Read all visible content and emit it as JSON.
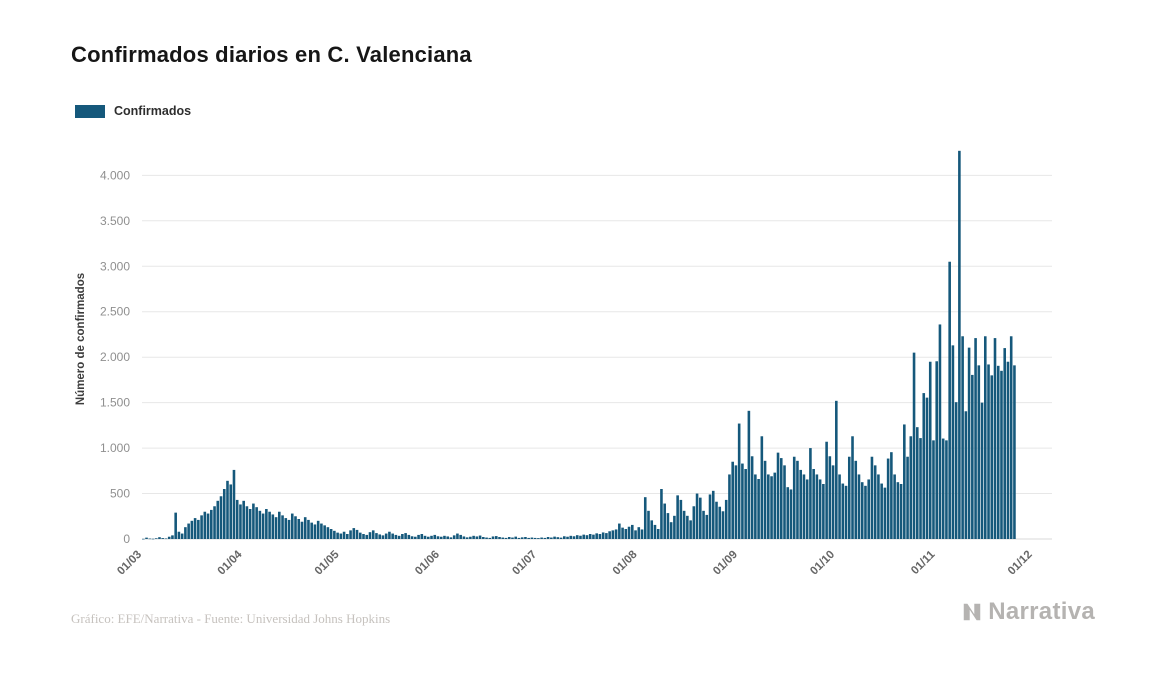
{
  "header": {
    "title": "Confirmados diarios en C. Valenciana"
  },
  "legend": {
    "items": [
      {
        "label": "Confirmados",
        "color": "#15587B"
      }
    ]
  },
  "footer": {
    "credit": "Gráfico: EFE/Narrativa - Fuente: Universidad Johns Hopkins",
    "brand": "Narrativa"
  },
  "chart_data": {
    "type": "bar",
    "title": "Confirmados diarios en C. Valenciana",
    "xlabel": "",
    "ylabel": "Número de confirmados",
    "legend_entries": [
      "Confirmados"
    ],
    "legend_position": "top-left",
    "grid": true,
    "ylim": [
      0,
      4400
    ],
    "yticks": [
      0,
      500,
      1000,
      1500,
      2000,
      2500,
      3000,
      3500,
      4000
    ],
    "ytick_labels": [
      "0",
      "500",
      "1.000",
      "1.500",
      "2.000",
      "2.500",
      "3.000",
      "3.500",
      "4.000"
    ],
    "xtick_labels": [
      "01/03",
      "01/04",
      "01/05",
      "01/06",
      "01/07",
      "01/08",
      "01/09",
      "01/10",
      "01/11",
      "01/12"
    ],
    "xtick_positions": [
      0,
      31,
      61,
      92,
      122,
      153,
      184,
      214,
      245,
      275
    ],
    "x_domain": 281,
    "start_date": "01/03",
    "cadence": "daily",
    "colors": {
      "bar": "#15587B",
      "grid": "#e7e7e7",
      "baseline": "#d8d8d8",
      "tick": "#8f8f8f",
      "xtick": "#666666",
      "axis_label": "#3d3d3d",
      "footer": "#c6c2be",
      "watermark": "#b5b3b1"
    },
    "values": [
      2,
      15,
      5,
      3,
      8,
      20,
      10,
      6,
      25,
      40,
      290,
      80,
      60,
      130,
      170,
      200,
      230,
      210,
      260,
      300,
      280,
      320,
      360,
      420,
      470,
      550,
      640,
      600,
      760,
      430,
      380,
      420,
      360,
      330,
      390,
      350,
      310,
      280,
      330,
      300,
      270,
      240,
      300,
      260,
      230,
      210,
      280,
      250,
      220,
      190,
      240,
      210,
      180,
      160,
      200,
      170,
      150,
      130,
      110,
      90,
      70,
      60,
      80,
      55,
      95,
      120,
      100,
      70,
      55,
      45,
      75,
      95,
      65,
      50,
      40,
      60,
      80,
      60,
      45,
      35,
      55,
      65,
      45,
      30,
      25,
      45,
      55,
      35,
      25,
      35,
      45,
      30,
      25,
      35,
      28,
      18,
      40,
      60,
      45,
      28,
      18,
      25,
      35,
      28,
      38,
      22,
      16,
      12,
      28,
      32,
      22,
      16,
      12,
      22,
      16,
      26,
      12,
      18,
      22,
      12,
      16,
      12,
      10,
      16,
      12,
      22,
      16,
      26,
      20,
      15,
      30,
      25,
      35,
      30,
      42,
      36,
      48,
      42,
      55,
      48,
      62,
      55,
      72,
      65,
      85,
      95,
      105,
      170,
      125,
      110,
      135,
      155,
      95,
      130,
      105,
      460,
      310,
      205,
      155,
      110,
      550,
      390,
      285,
      185,
      255,
      480,
      430,
      310,
      255,
      205,
      360,
      500,
      455,
      310,
      265,
      490,
      530,
      410,
      355,
      305,
      430,
      710,
      850,
      810,
      1270,
      830,
      770,
      1410,
      910,
      710,
      660,
      1130,
      860,
      710,
      690,
      730,
      950,
      890,
      810,
      570,
      545,
      905,
      860,
      760,
      710,
      655,
      1000,
      770,
      710,
      655,
      605,
      1070,
      910,
      810,
      1520,
      710,
      610,
      585,
      905,
      1130,
      860,
      710,
      625,
      585,
      655,
      905,
      810,
      710,
      610,
      565,
      885,
      955,
      710,
      625,
      605,
      1260,
      905,
      1130,
      2050,
      1230,
      1110,
      1605,
      1555,
      1950,
      1085,
      1955,
      2360,
      1105,
      1085,
      3050,
      2130,
      1505,
      4270,
      2230,
      1405,
      2105,
      1805,
      2210,
      1910,
      1500,
      2230,
      1920,
      1800,
      2210,
      1905,
      1850,
      2100,
      1950,
      2230,
      1910
    ]
  }
}
